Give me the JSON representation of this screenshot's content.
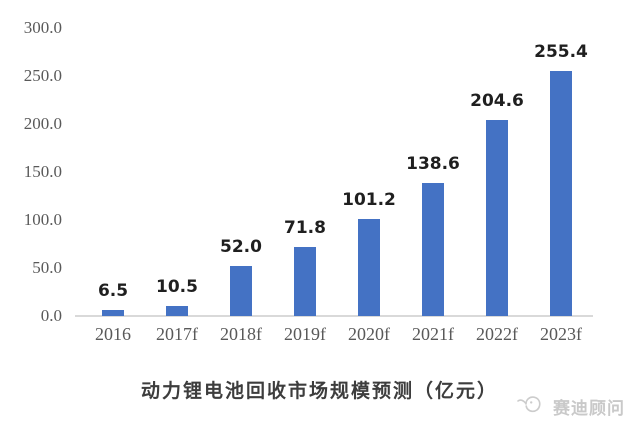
{
  "chart_data": {
    "type": "bar",
    "title": "动力锂电池回收市场规模预测（亿元）",
    "xlabel": "",
    "ylabel": "",
    "categories": [
      "2016",
      "2017f",
      "2018f",
      "2019f",
      "2020f",
      "2021f",
      "2022f",
      "2023f"
    ],
    "values": [
      6.5,
      10.5,
      52.0,
      71.8,
      101.2,
      138.6,
      204.6,
      255.4
    ],
    "value_labels": [
      "6.5",
      "10.5",
      "52.0",
      "71.8",
      "101.2",
      "138.6",
      "204.6",
      "255.4"
    ],
    "ylim": [
      0,
      300
    ],
    "ytick_step": 50,
    "ytick_labels": [
      "0.0",
      "50.0",
      "100.0",
      "150.0",
      "200.0",
      "250.0",
      "300.0"
    ],
    "grid": false,
    "legend": "none",
    "bar_color": "#4472C4",
    "axis_line_color": "#d9d9d9",
    "tick_label_color": "#595959",
    "value_label_color": "#1f1f1f"
  },
  "watermark": {
    "icon": "saidi-bird-logo-icon",
    "text": "赛迪顾问",
    "color": "#c9c9c9"
  }
}
